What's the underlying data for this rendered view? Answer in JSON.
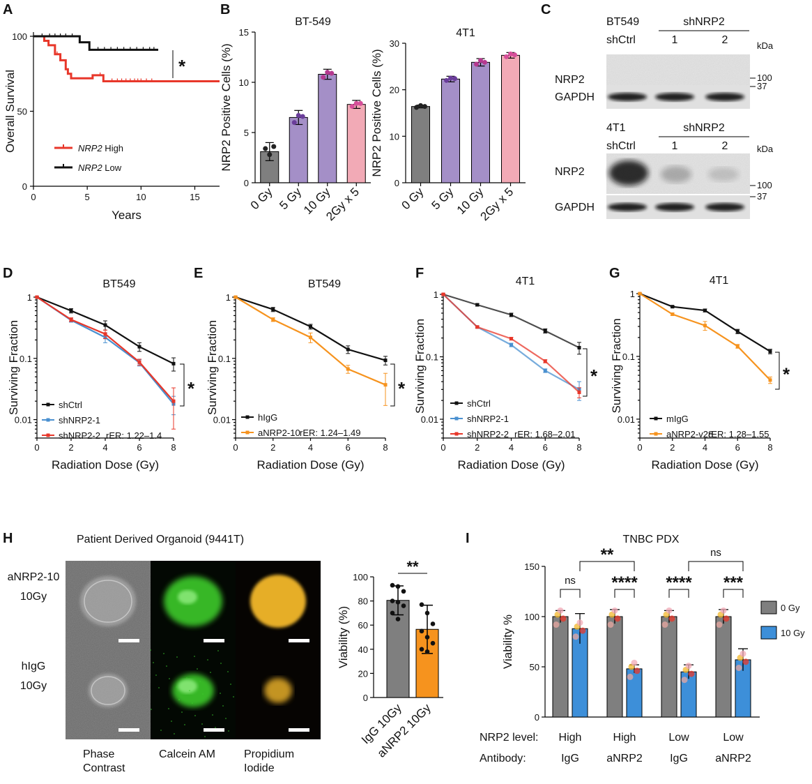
{
  "colors": {
    "red": "#e8372a",
    "black": "#111111",
    "blue": "#4a90d0",
    "orange": "#f6931e",
    "grey": "#7f7f7f",
    "purple": "#a48fc7",
    "purple_dark": "#6a3d9a",
    "pink": "#f2aab6",
    "pink_dark": "#d64f9a",
    "magenta": "#b5398f",
    "green": "#3ccb2c",
    "yellow": "#f3b82c",
    "bar_blue": "#3d8fd9"
  },
  "panels": {
    "A": "A",
    "B": "B",
    "C": "C",
    "D": "D",
    "E": "E",
    "F": "F",
    "G": "G",
    "H": "H",
    "I": "I"
  },
  "chart_data": [
    {
      "id": "A",
      "type": "line",
      "xlabel": "Years",
      "ylabel": "Overall Survival",
      "xlim": [
        0,
        17.3
      ],
      "ylim": [
        0,
        100
      ],
      "xticks": [
        "0",
        "5",
        "10",
        "15"
      ],
      "yticks": [
        "0",
        "50",
        "100"
      ],
      "annotation": "*",
      "series": [
        {
          "name": "NRP2 High",
          "name_italic": "NRP2",
          "name_rest": " High",
          "color": "#e8372a",
          "steps": [
            [
              0,
              100
            ],
            [
              1,
              100
            ],
            [
              1,
              97
            ],
            [
              1.4,
              97
            ],
            [
              1.4,
              94
            ],
            [
              2,
              94
            ],
            [
              2,
              88
            ],
            [
              2.5,
              88
            ],
            [
              2.5,
              84
            ],
            [
              3,
              84
            ],
            [
              3,
              78
            ],
            [
              3.2,
              78
            ],
            [
              3.2,
              75
            ],
            [
              3.5,
              75
            ],
            [
              3.5,
              72
            ],
            [
              5.5,
              72
            ],
            [
              5.5,
              74
            ],
            [
              6.5,
              74
            ],
            [
              6.5,
              70
            ],
            [
              17.3,
              70
            ]
          ],
          "censor": [
            2.2,
            6.2,
            7.3,
            7.8,
            8.2,
            8.6,
            9,
            9.4,
            9.7,
            10,
            10.5,
            11
          ]
        },
        {
          "name": "NRP2 Low",
          "name_italic": "NRP2",
          "name_rest": " Low",
          "color": "#111111",
          "steps": [
            [
              0,
              100
            ],
            [
              4.3,
              100
            ],
            [
              4.3,
              96
            ],
            [
              5.2,
              96
            ],
            [
              5.2,
              91
            ],
            [
              11.6,
              91
            ]
          ],
          "censor": [
            0.8,
            1.5,
            2,
            2.5,
            3,
            3.6,
            6,
            6.6,
            7.2,
            7.8,
            8.4,
            9,
            9.6,
            10.2,
            10.8,
            11.2
          ]
        }
      ]
    },
    {
      "id": "B1",
      "type": "bar",
      "title": "BT-549",
      "ylabel": "NRP2 Positive Cells (%)",
      "ylim": [
        0,
        15
      ],
      "yticks": [
        "0",
        "5",
        "10",
        "15"
      ],
      "categories": [
        "0 Gy",
        "5 Gy",
        "10 Gy",
        "2Gy x 5"
      ],
      "values": [
        3.1,
        6.5,
        10.8,
        7.8
      ],
      "errors": [
        0.9,
        0.7,
        0.5,
        0.4
      ],
      "points": [
        [
          3.4,
          2.8,
          3.6
        ],
        [
          6.0,
          6.7,
          6.6
        ],
        [
          10.5,
          11.0,
          10.9
        ],
        [
          7.6,
          7.9,
          7.9
        ]
      ]
    },
    {
      "id": "B2",
      "type": "bar",
      "title": "4T1",
      "ylabel": "NRP2 Positive Cells (%)",
      "ylim": [
        0,
        30
      ],
      "yticks": [
        "0",
        "10",
        "20",
        "30"
      ],
      "categories": [
        "0 Gy",
        "5 Gy",
        "10 Gy",
        "2Gy x 5"
      ],
      "values": [
        16.4,
        22.3,
        25.9,
        27.4
      ],
      "errors": [
        0.3,
        0.6,
        0.8,
        0.6
      ],
      "points": [
        [
          16.2,
          16.6,
          16.4
        ],
        [
          22.0,
          22.5,
          22.4
        ],
        [
          25.5,
          26.3,
          25.9
        ],
        [
          27.1,
          27.7,
          27.5
        ]
      ]
    },
    {
      "id": "D",
      "type": "line",
      "title": "BT549",
      "xlabel": "Radiation Dose (Gy)",
      "ylabel": "Surviving Fraction",
      "yscale": "log",
      "ylim": [
        0.005,
        1
      ],
      "x": [
        0,
        2,
        4,
        6,
        8
      ],
      "xticks": [
        "0",
        "2",
        "4",
        "6",
        "8"
      ],
      "yticks": [
        "1",
        "0.1",
        "0.01"
      ],
      "annotation": "*",
      "rER": "rER: 1.22–1.4",
      "series": [
        {
          "name": "shCtrl",
          "color": "#111111",
          "values": [
            1,
            0.6,
            0.35,
            0.155,
            0.082
          ],
          "err": [
            0.02,
            0.05,
            0.06,
            0.025,
            0.02
          ]
        },
        {
          "name": "shNRP2-1",
          "color": "#4a90d0",
          "values": [
            1,
            0.42,
            0.22,
            0.085,
            0.018
          ],
          "err": [
            0.02,
            0.03,
            0.04,
            0.01,
            0.006
          ]
        },
        {
          "name": "shNRP2-2",
          "color": "#e8372a",
          "values": [
            1,
            0.43,
            0.25,
            0.087,
            0.02
          ],
          "err": [
            0.02,
            0.03,
            0.04,
            0.01,
            0.013
          ]
        }
      ]
    },
    {
      "id": "E",
      "type": "line",
      "title": "BT549",
      "xlabel": "Radiation Dose (Gy)",
      "ylabel": "Surviving Fraction",
      "yscale": "log",
      "ylim": [
        0.005,
        1
      ],
      "x": [
        0,
        2,
        4,
        6,
        8
      ],
      "xticks": [
        "0",
        "2",
        "4",
        "6",
        "8"
      ],
      "yticks": [
        "1",
        "0.1",
        "0.01"
      ],
      "annotation": "*",
      "rER": "rER: 1.24–1.49",
      "series": [
        {
          "name": "hIgG",
          "color": "#111111",
          "values": [
            1,
            0.63,
            0.33,
            0.14,
            0.093
          ],
          "err": [
            0.02,
            0.05,
            0.03,
            0.02,
            0.015
          ]
        },
        {
          "name": "aNRP2-10",
          "color": "#f6931e",
          "values": [
            1,
            0.43,
            0.22,
            0.067,
            0.037
          ],
          "err": [
            0.02,
            0.03,
            0.04,
            0.01,
            0.02
          ]
        }
      ]
    },
    {
      "id": "F",
      "type": "line",
      "title": "4T1",
      "xlabel": "Radiation Dose (Gy)",
      "ylabel": "Surviving Fraction",
      "yscale": "log",
      "ylim": [
        0.005,
        1
      ],
      "x": [
        0,
        2,
        4,
        6,
        8
      ],
      "xticks": [
        "0",
        "2",
        "4",
        "6",
        "8"
      ],
      "yticks": [
        "1",
        "0.1",
        "0.01"
      ],
      "annotation": "*",
      "rER": "rER: 1.68–2.01",
      "series": [
        {
          "name": "shCtrl",
          "color": "#111111",
          "values": [
            1,
            0.68,
            0.47,
            0.26,
            0.14
          ],
          "err": [
            0.02,
            0.03,
            0.03,
            0.02,
            0.03
          ]
        },
        {
          "name": "shNRP2-1",
          "color": "#4a90d0",
          "values": [
            1,
            0.3,
            0.155,
            0.06,
            0.03
          ],
          "err": [
            0.02,
            0.01,
            0.01,
            0.004,
            0.01
          ]
        },
        {
          "name": "shNRP2-2",
          "color": "#e8372a",
          "values": [
            1,
            0.3,
            0.195,
            0.085,
            0.027
          ],
          "err": [
            0.02,
            0.01,
            0.01,
            0.005,
            0.005
          ]
        }
      ]
    },
    {
      "id": "G",
      "type": "line",
      "title": "4T1",
      "xlabel": "Radiation Dose (Gy)",
      "ylabel": "Surviving Fraction",
      "yscale": "log",
      "ylim": [
        0.005,
        1
      ],
      "x": [
        0,
        2,
        4,
        6,
        8
      ],
      "xticks": [
        "0",
        "2",
        "4",
        "6",
        "8"
      ],
      "yticks": [
        "1",
        "0.1",
        "0.01"
      ],
      "annotation": "*",
      "rER": "rER: 1.28–1.55",
      "series": [
        {
          "name": "mIgG",
          "color": "#111111",
          "values": [
            1,
            0.62,
            0.54,
            0.25,
            0.12
          ],
          "err": [
            0.02,
            0.02,
            0.03,
            0.02,
            0.01
          ]
        },
        {
          "name": "aNRP2-v28",
          "color": "#f6931e",
          "values": [
            1,
            0.47,
            0.31,
            0.145,
            0.042
          ],
          "err": [
            0.02,
            0.02,
            0.05,
            0.01,
            0.005
          ]
        }
      ]
    },
    {
      "id": "H",
      "type": "bar",
      "ylabel": "Viability (%)",
      "ylim": [
        0,
        100
      ],
      "yticks": [
        "0",
        "20",
        "40",
        "60",
        "80",
        "100"
      ],
      "annotation": "**",
      "categories": [
        "IgG 10Gy",
        "aNRP2 10Gy"
      ],
      "values": [
        80.5,
        56.5
      ],
      "errors": [
        12,
        20
      ],
      "colors": [
        "#7f7f7f",
        "#f6931e"
      ],
      "points": [
        [
          93,
          92,
          88,
          80,
          79,
          76,
          70,
          65
        ],
        [
          77,
          70,
          61,
          55,
          50,
          45,
          40,
          38
        ]
      ]
    },
    {
      "id": "I",
      "type": "bar",
      "title": "TNBC PDX",
      "ylabel": "Viability %",
      "ylim": [
        0,
        150
      ],
      "yticks": [
        "0",
        "50",
        "100",
        "150"
      ],
      "groups": [
        {
          "nrp2": "High",
          "antibody": "IgG",
          "values": [
            100,
            88
          ],
          "errors": [
            6,
            15
          ]
        },
        {
          "nrp2": "High",
          "antibody": "aNRP2",
          "values": [
            100,
            48
          ],
          "errors": [
            7,
            4
          ]
        },
        {
          "nrp2": "Low",
          "antibody": "IgG",
          "values": [
            100,
            45
          ],
          "errors": [
            6,
            7
          ]
        },
        {
          "nrp2": "Low",
          "antibody": "aNRP2",
          "values": [
            100,
            57
          ],
          "errors": [
            7,
            11
          ]
        }
      ],
      "series": [
        {
          "name": "0 Gy",
          "color": "#7f7f7f"
        },
        {
          "name": "10 Gy",
          "color": "#3d8fd9"
        }
      ],
      "row_labels": [
        "NRP2 level:",
        "Antibody:"
      ],
      "comparisons": [
        {
          "label": "ns",
          "pair": [
            0,
            1
          ],
          "level": 1
        },
        {
          "label": "****",
          "pair": [
            2,
            3
          ],
          "level": 1
        },
        {
          "label": "****",
          "pair": [
            4,
            5
          ],
          "level": 1
        },
        {
          "label": "***",
          "pair": [
            6,
            7
          ],
          "level": 1
        },
        {
          "label": "**",
          "pair": [
            1,
            3
          ],
          "level": 2
        },
        {
          "label": "ns",
          "pair": [
            5,
            7
          ],
          "level": 2
        }
      ]
    }
  ],
  "blots": {
    "top": {
      "cell": "BT549",
      "ctrl": "shCtrl",
      "group": "shNRP2",
      "lanes": [
        "1",
        "2"
      ],
      "kda": "kDa",
      "m1": "100",
      "m2": "37",
      "band1": "NRP2",
      "band2": "GAPDH"
    },
    "bottom": {
      "cell": "4T1",
      "ctrl": "shCtrl",
      "group": "shNRP2",
      "lanes": [
        "1",
        "2"
      ],
      "kda": "kDa",
      "m1": "100",
      "m2": "37",
      "band1": "NRP2",
      "band2": "GAPDH"
    }
  },
  "organoid": {
    "title": "Patient Derived Organoid (9441T)",
    "rows": [
      [
        "aNRP2-10",
        "10Gy"
      ],
      [
        "hIgG",
        "10Gy"
      ]
    ],
    "cols": [
      [
        "Phase",
        "Contrast"
      ],
      [
        "Calcein AM"
      ],
      [
        "Propidium",
        "Iodide"
      ]
    ],
    "colColors": [
      "#111111",
      "#3ccb2c",
      "#f3b82c"
    ]
  }
}
